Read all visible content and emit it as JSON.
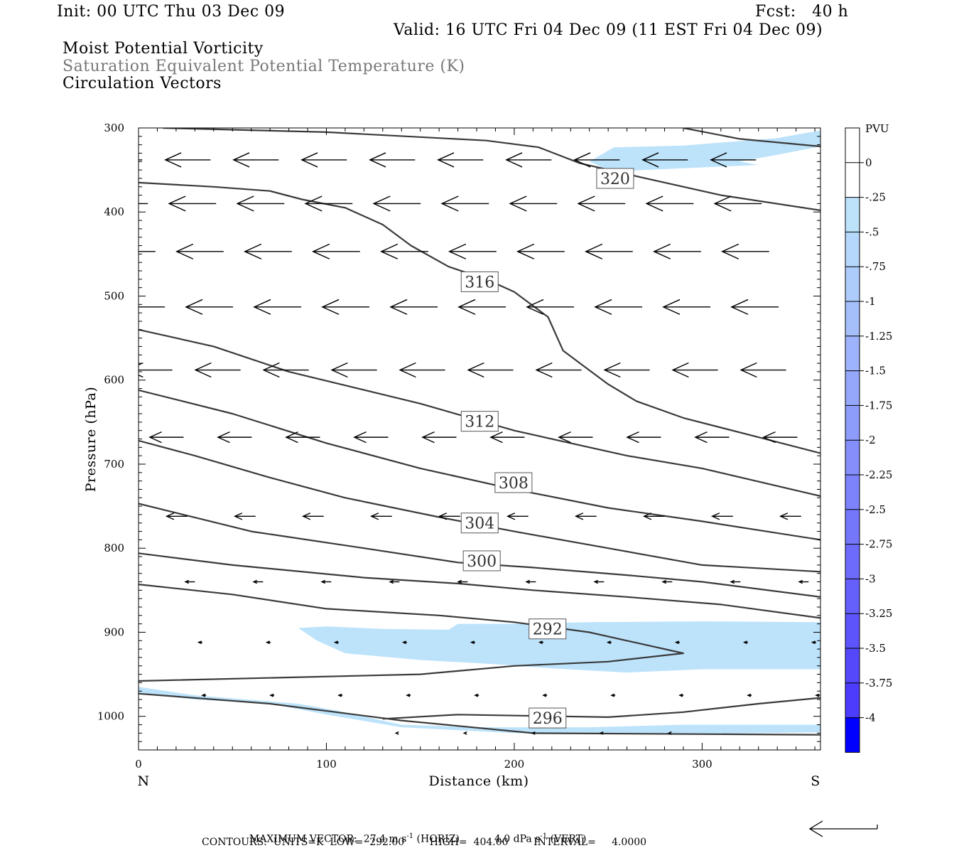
{
  "header": {
    "init": "Init: 00 UTC Thu 03 Dec 09",
    "fcst": "Fcst:   40 h",
    "valid": "Valid: 16 UTC Fri 04 Dec 09 (11 EST Fri 04 Dec 09)",
    "field1": "Moist Potential Vorticity",
    "field2": "Saturation Equivalent Potential Temperature (K)",
    "field3": "Circulation Vectors"
  },
  "colors": {
    "field2_text": "#777777",
    "contour": "#3a3a3a",
    "mpv_shade": "#bde3fb"
  },
  "footer": {
    "max_vector_label": "MAXIMUM VECTOR:",
    "max_vector_horiz_value": "27.4",
    "max_vector_horiz_unit": "m s",
    "max_vector_horiz_tag": "(HORIZ)",
    "max_vector_vert_value": "4.0",
    "max_vector_vert_unit": "dPa s",
    "max_vector_vert_tag": "(VERT)",
    "exp": "-1",
    "contours": "CONTOURS:  UNITS=K  LOW=  292.00        HIGH=  404.00        INTERVAL=     4.0000"
  },
  "chart_data": {
    "type": "cross-section",
    "x_label": "Distance (km)",
    "y_label": "Pressure (hPa)",
    "x_range": [
      0,
      363
    ],
    "y_range": [
      300,
      1040
    ],
    "x_ticks": [
      0,
      100,
      200,
      300
    ],
    "y_ticks": [
      300,
      400,
      500,
      600,
      700,
      800,
      900,
      1000
    ],
    "x_end_labels": {
      "left": "N",
      "right": "S"
    },
    "colorbar": {
      "title": "PVU",
      "levels": [
        "0",
        "-.25",
        "-.5",
        "-.75",
        "-1",
        "-1.25",
        "-1.5",
        "-1.75",
        "-2",
        "-2.25",
        "-2.5",
        "-2.75",
        "-3",
        "-3.25",
        "-3.5",
        "-3.75",
        "-4"
      ],
      "colors": [
        "#ffffff",
        "#ffffff",
        "#bde3fb",
        "#b5d7fb",
        "#adcbfb",
        "#a5bffb",
        "#9db3fb",
        "#95a7fb",
        "#8d9bfb",
        "#858ffb",
        "#7d83fb",
        "#7577fb",
        "#6d6bfb",
        "#6560fb",
        "#5d54fb",
        "#5548fb",
        "#4d3cfb",
        "#0000ff"
      ]
    },
    "contour_labels": [
      {
        "text": "320",
        "x": 253.7,
        "y": 360
      },
      {
        "text": "316",
        "x": 181.6,
        "y": 483
      },
      {
        "text": "312",
        "x": 181.6,
        "y": 649
      },
      {
        "text": "308",
        "x": 199.6,
        "y": 722
      },
      {
        "text": "304",
        "x": 181.6,
        "y": 770
      },
      {
        "text": "300",
        "x": 182.7,
        "y": 815
      },
      {
        "text": "292",
        "x": 217.7,
        "y": 896
      },
      {
        "text": "296",
        "x": 217.7,
        "y": 1002
      }
    ],
    "contours": [
      [
        [
          13,
          300
        ],
        [
          100,
          305
        ],
        [
          185,
          315
        ],
        [
          213,
          323
        ],
        [
          235,
          342
        ],
        [
          270,
          360
        ],
        [
          310,
          380
        ],
        [
          363,
          398
        ]
      ],
      [
        [
          0,
          365
        ],
        [
          40,
          370
        ],
        [
          70,
          375
        ],
        [
          87,
          385
        ],
        [
          110,
          395
        ],
        [
          130,
          415
        ],
        [
          145,
          440
        ],
        [
          165,
          465
        ],
        [
          185,
          480
        ],
        [
          200,
          495
        ],
        [
          218,
          525
        ],
        [
          226,
          565
        ],
        [
          235,
          580
        ],
        [
          250,
          605
        ],
        [
          265,
          625
        ],
        [
          290,
          645
        ],
        [
          330,
          668
        ],
        [
          363,
          687
        ]
      ],
      [
        [
          290,
          300
        ],
        [
          320,
          313
        ],
        [
          363,
          322
        ]
      ],
      [
        [
          0,
          540
        ],
        [
          40,
          560
        ],
        [
          80,
          590
        ],
        [
          150,
          628
        ],
        [
          200,
          660
        ],
        [
          260,
          690
        ],
        [
          300,
          705
        ],
        [
          363,
          738
        ]
      ],
      [
        [
          0,
          612
        ],
        [
          50,
          640
        ],
        [
          100,
          675
        ],
        [
          150,
          705
        ],
        [
          200,
          730
        ],
        [
          250,
          752
        ],
        [
          300,
          768
        ],
        [
          363,
          790
        ]
      ],
      [
        [
          0,
          672
        ],
        [
          30,
          690
        ],
        [
          70,
          716
        ],
        [
          110,
          740
        ],
        [
          160,
          763
        ],
        [
          200,
          780
        ],
        [
          250,
          800
        ],
        [
          300,
          820
        ],
        [
          363,
          828
        ]
      ],
      [
        [
          0,
          747
        ],
        [
          60,
          780
        ],
        [
          120,
          800
        ],
        [
          170,
          817
        ],
        [
          210,
          823
        ],
        [
          260,
          832
        ],
        [
          300,
          840
        ],
        [
          363,
          858
        ]
      ],
      [
        [
          0,
          806
        ],
        [
          50,
          820
        ],
        [
          120,
          835
        ],
        [
          170,
          842
        ],
        [
          210,
          850
        ],
        [
          260,
          858
        ],
        [
          310,
          867
        ],
        [
          363,
          883
        ]
      ],
      [
        [
          0,
          843
        ],
        [
          50,
          855
        ],
        [
          100,
          872
        ],
        [
          160,
          880
        ],
        [
          200,
          888
        ],
        [
          240,
          900
        ],
        [
          270,
          915
        ],
        [
          290,
          925
        ],
        [
          250,
          935
        ],
        [
          200,
          940
        ],
        [
          150,
          950
        ],
        [
          0,
          958
        ]
      ],
      [
        [
          0,
          973
        ],
        [
          70,
          985
        ],
        [
          140,
          1005
        ],
        [
          210,
          1020
        ],
        [
          363,
          1022
        ]
      ],
      [
        [
          130,
          1003
        ],
        [
          170,
          998
        ],
        [
          250,
          1001
        ],
        [
          290,
          995
        ],
        [
          330,
          985
        ],
        [
          363,
          978
        ]
      ]
    ],
    "shaded_regions": [
      [
        [
          0,
          965
        ],
        [
          30,
          975
        ],
        [
          85,
          985
        ],
        [
          105,
          993
        ],
        [
          140,
          1010
        ],
        [
          180,
          1013
        ],
        [
          240,
          1013
        ],
        [
          290,
          1010
        ],
        [
          363,
          1010
        ],
        [
          363,
          1019
        ],
        [
          290,
          1021
        ],
        [
          200,
          1020
        ],
        [
          140,
          1013
        ],
        [
          100,
          998
        ],
        [
          70,
          985
        ],
        [
          30,
          980
        ],
        [
          0,
          972
        ]
      ],
      [
        [
          85,
          895
        ],
        [
          100,
          893
        ],
        [
          130,
          896
        ],
        [
          165,
          897
        ],
        [
          170,
          890
        ],
        [
          200,
          890
        ],
        [
          240,
          888
        ],
        [
          300,
          887
        ],
        [
          363,
          888
        ],
        [
          363,
          944
        ],
        [
          300,
          944
        ],
        [
          260,
          948
        ],
        [
          220,
          943
        ],
        [
          190,
          938
        ],
        [
          150,
          933
        ],
        [
          110,
          925
        ],
        [
          95,
          910
        ]
      ],
      [
        [
          240,
          340
        ],
        [
          253,
          323
        ],
        [
          290,
          321
        ],
        [
          340,
          312
        ],
        [
          363,
          303
        ],
        [
          363,
          322
        ],
        [
          340,
          332
        ],
        [
          320,
          340
        ],
        [
          330,
          344
        ],
        [
          250,
          352
        ],
        [
          245,
          345
        ]
      ]
    ],
    "vectors": [
      {
        "y": 338,
        "x_start": 2,
        "dx": -24,
        "dy": 0,
        "count": 10
      },
      {
        "y": 390,
        "x_start": 5,
        "dx": -25,
        "dy": 0,
        "count": 10
      },
      {
        "y": 447,
        "x_start": 9,
        "dx": -25,
        "dy": 0,
        "count": 10
      },
      {
        "y": 513,
        "x_start": 14,
        "dx": -25,
        "dy": 0,
        "count": 10
      },
      {
        "y": 588,
        "x_start": 18,
        "dx": -24,
        "dy": 0,
        "count": 10
      },
      {
        "y": 668,
        "x_start": 24,
        "dx": -18,
        "dy": 0,
        "count": 10
      },
      {
        "y": 762,
        "x_start": 26,
        "dx": -11,
        "dy": 0,
        "count": 10
      },
      {
        "y": 840,
        "x_start": 30,
        "dx": -5,
        "dy": 0,
        "count": 10
      },
      {
        "y": 912,
        "x_start": 34,
        "dx": -2,
        "dy": 0,
        "count": 10
      },
      {
        "y": 975,
        "x_start": 36,
        "dx": -2,
        "dy": 0,
        "count": 10
      },
      {
        "y": 1020,
        "x_start": 138,
        "dx": -1,
        "dy": 0,
        "count": 5
      }
    ]
  }
}
